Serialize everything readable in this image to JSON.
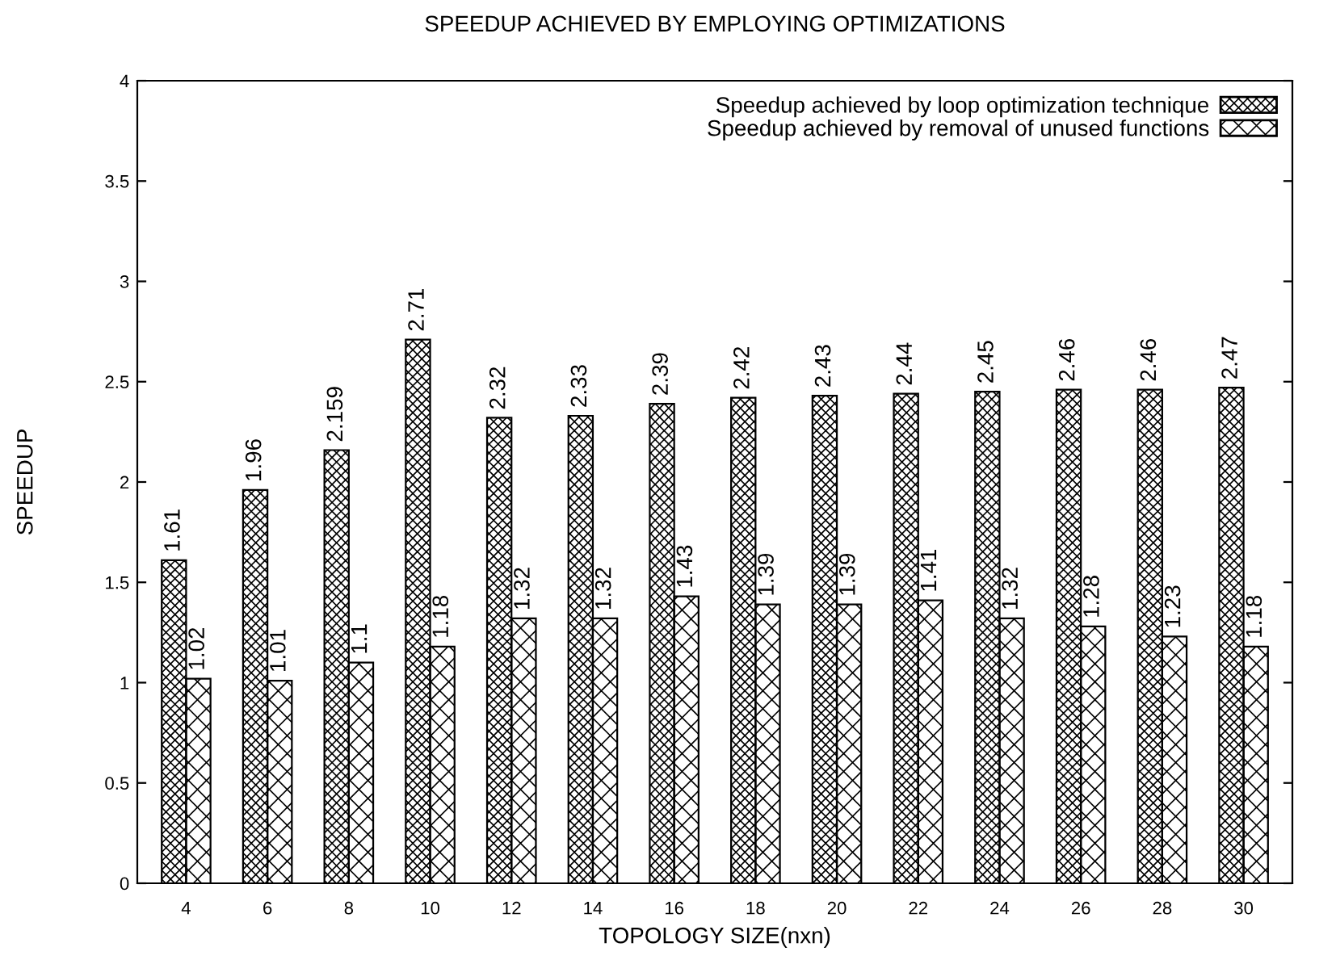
{
  "chart_data": {
    "type": "bar",
    "title": "SPEEDUP ACHIEVED BY EMPLOYING OPTIMIZATIONS",
    "xlabel": "TOPOLOGY SIZE(nxn)",
    "ylabel": "SPEEDUP",
    "categories": [
      "4",
      "6",
      "8",
      "10",
      "12",
      "14",
      "16",
      "18",
      "20",
      "22",
      "24",
      "26",
      "28",
      "30"
    ],
    "series": [
      {
        "name": "Speedup achieved by loop optimization technique",
        "color": "#000000",
        "values": [
          1.61,
          1.96,
          2.159,
          2.71,
          2.32,
          2.33,
          2.39,
          2.42,
          2.43,
          2.44,
          2.45,
          2.46,
          2.46,
          2.47
        ]
      },
      {
        "name": "Speedup achieved by removal of unused functions",
        "color": "#000000",
        "values": [
          1.02,
          1.01,
          1.1,
          1.18,
          1.32,
          1.32,
          1.43,
          1.39,
          1.39,
          1.41,
          1.32,
          1.28,
          1.23,
          1.18
        ]
      }
    ],
    "ylim": [
      0,
      4
    ],
    "yticks": [
      0,
      0.5,
      1,
      1.5,
      2,
      2.5,
      3,
      3.5,
      4
    ],
    "data_labels": true,
    "legend": "top right",
    "grid": false
  }
}
